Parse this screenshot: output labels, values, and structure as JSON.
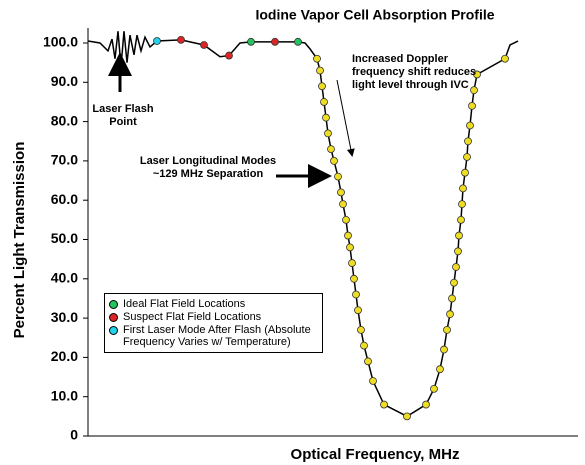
{
  "chart_data": {
    "type": "line",
    "title": "Iodine Vapor Cell Absorption Profile",
    "x_label": "Optical Frequency, MHz",
    "y_label": "Percent Light Transmission",
    "xlim": [
      0,
      490
    ],
    "ylim": [
      0,
      100
    ],
    "yticks": [
      0,
      {
        "value": 10,
        "label": "10.0"
      },
      {
        "value": 20,
        "label": "20.0"
      },
      {
        "value": 30,
        "label": "30.0"
      },
      {
        "value": 40,
        "label": "40.0"
      },
      {
        "value": 50,
        "label": "50.0"
      },
      {
        "value": 60,
        "label": "60.0"
      },
      {
        "value": 70,
        "label": "70.0"
      },
      {
        "value": 80,
        "label": "80.0"
      },
      {
        "value": 90,
        "label": "90.0"
      },
      {
        "value": 100,
        "label": "100.0"
      }
    ],
    "annotations": [
      "Laser Flash Point",
      "Laser Longitudinal Modes ~129 MHz Separation",
      "Increased Doppler frequency shift reduces light level through IVC"
    ],
    "curve": {
      "color": "#000000",
      "x": [
        0,
        12,
        20,
        24,
        27,
        30,
        33,
        36,
        39,
        42,
        46,
        49,
        53,
        57,
        62,
        69,
        93,
        116,
        132,
        141,
        152,
        163,
        210,
        217,
        222,
        229,
        232,
        234,
        236,
        238,
        240,
        243,
        246,
        250,
        253,
        255,
        258,
        260,
        262,
        264,
        266,
        268,
        270,
        273,
        276,
        280,
        285,
        296,
        319,
        338,
        346,
        352,
        356,
        359,
        362,
        364,
        366,
        368,
        370,
        371,
        373,
        374,
        375,
        377,
        379,
        380,
        382,
        384,
        386,
        389,
        417,
        422,
        430
      ],
      "values": [
        100.5,
        100,
        98,
        101,
        96,
        103,
        94,
        103,
        95,
        102,
        97,
        102,
        98,
        101.5,
        99,
        100.5,
        100.8,
        99.5,
        96.5,
        96.8,
        100,
        100.3,
        100.3,
        100,
        98.5,
        96,
        93,
        89,
        85,
        81,
        77,
        73,
        70,
        66,
        62,
        59,
        55,
        51,
        48,
        44,
        40,
        36,
        32,
        27,
        23,
        19,
        14,
        8,
        5,
        8,
        12,
        17,
        22,
        27,
        31,
        35,
        39,
        43,
        47,
        51,
        55,
        59,
        63,
        67,
        71,
        75,
        79,
        84,
        88,
        92,
        96,
        99.5,
        100.5
      ]
    },
    "series": [
      {
        "name": "Ideal Flat Field Locations",
        "color": "#22c55e",
        "x": [
          163,
          210
        ],
        "values": [
          100.3,
          100.3
        ]
      },
      {
        "name": "Suspect Flat Field Locations",
        "color": "#dc2626",
        "x": [
          93,
          116,
          141,
          187
        ],
        "values": [
          100.8,
          99.5,
          96.8,
          100.3
        ]
      },
      {
        "name": "First Laser Mode After Flash (Absolute Frequency Varies w/ Temperature)",
        "color": "#22d3ee",
        "x": [
          69
        ],
        "values": [
          100.5
        ]
      },
      {
        "color": "#eedd22",
        "x": [
          229,
          232,
          234,
          236,
          238,
          240,
          243,
          246,
          250,
          253,
          255,
          258,
          260,
          262,
          264,
          266,
          268,
          270,
          273,
          276,
          280,
          285,
          296,
          319,
          338,
          346,
          352,
          356,
          359,
          362,
          364,
          366,
          368,
          370,
          371,
          373,
          374,
          375,
          377,
          379,
          380,
          382,
          384,
          386,
          389,
          417
        ],
        "values": [
          96,
          93,
          89,
          85,
          81,
          77,
          73,
          70,
          66,
          62,
          59,
          55,
          51,
          48,
          44,
          40,
          36,
          32,
          27,
          23,
          19,
          14,
          8,
          5,
          8,
          12,
          17,
          22,
          27,
          31,
          35,
          39,
          43,
          47,
          51,
          55,
          59,
          63,
          67,
          71,
          75,
          79,
          84,
          88,
          92,
          96
        ]
      }
    ],
    "legend": "lower left"
  }
}
